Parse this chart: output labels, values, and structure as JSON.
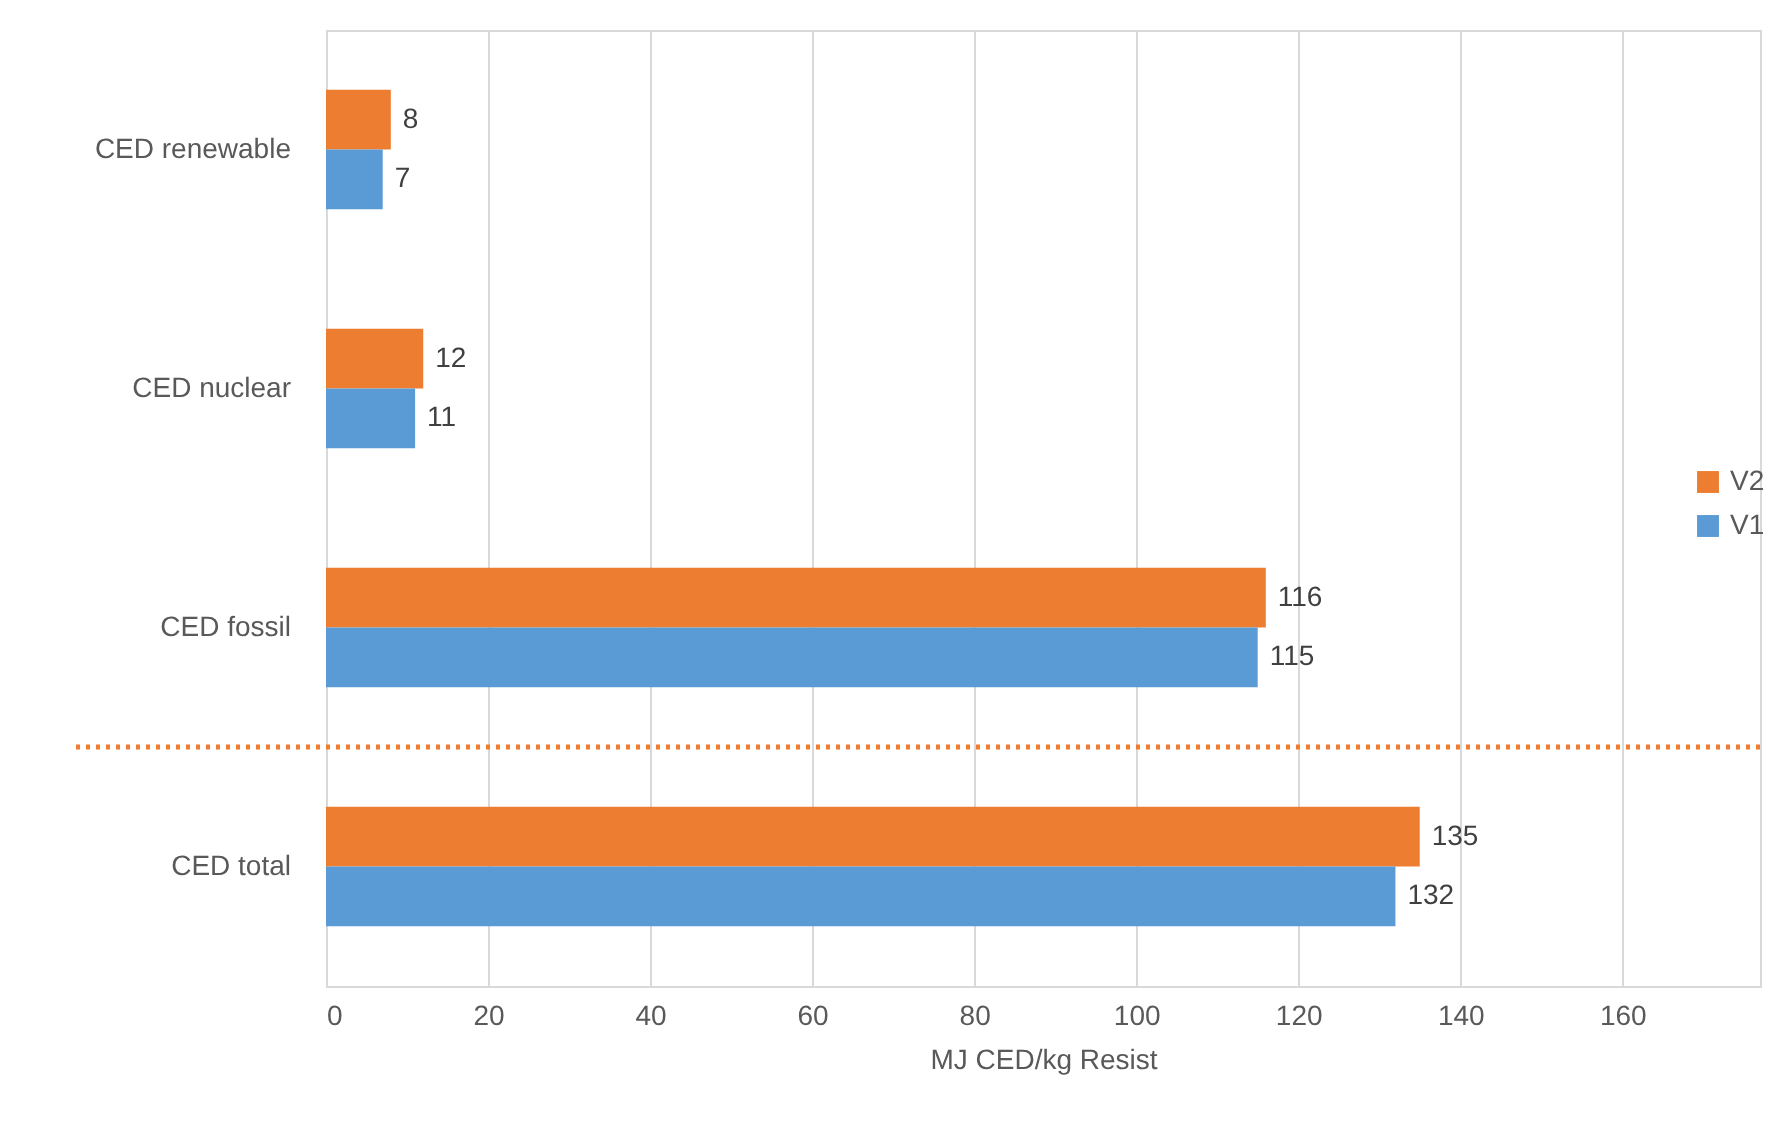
{
  "chart_data": {
    "type": "bar",
    "orientation": "horizontal",
    "xlabel": "MJ CED/kg Resist",
    "categories": [
      "CED renewable",
      "CED nuclear",
      "CED fossil",
      "CED total"
    ],
    "series": [
      {
        "name": "V2",
        "color": "#ed7d31",
        "values": [
          8,
          12,
          116,
          135
        ]
      },
      {
        "name": "V1",
        "color": "#5b9bd5",
        "values": [
          7,
          11,
          115,
          132
        ]
      }
    ],
    "xlim": [
      0,
      177
    ],
    "xticks": [
      0,
      20,
      40,
      60,
      80,
      100,
      120,
      140,
      160
    ],
    "grid": "x",
    "legend": "right",
    "data_labels": true,
    "ref_lines": [
      {
        "axis": "y",
        "value": "CED total",
        "color": "#ed7d31",
        "line_style": "dotted"
      }
    ]
  }
}
